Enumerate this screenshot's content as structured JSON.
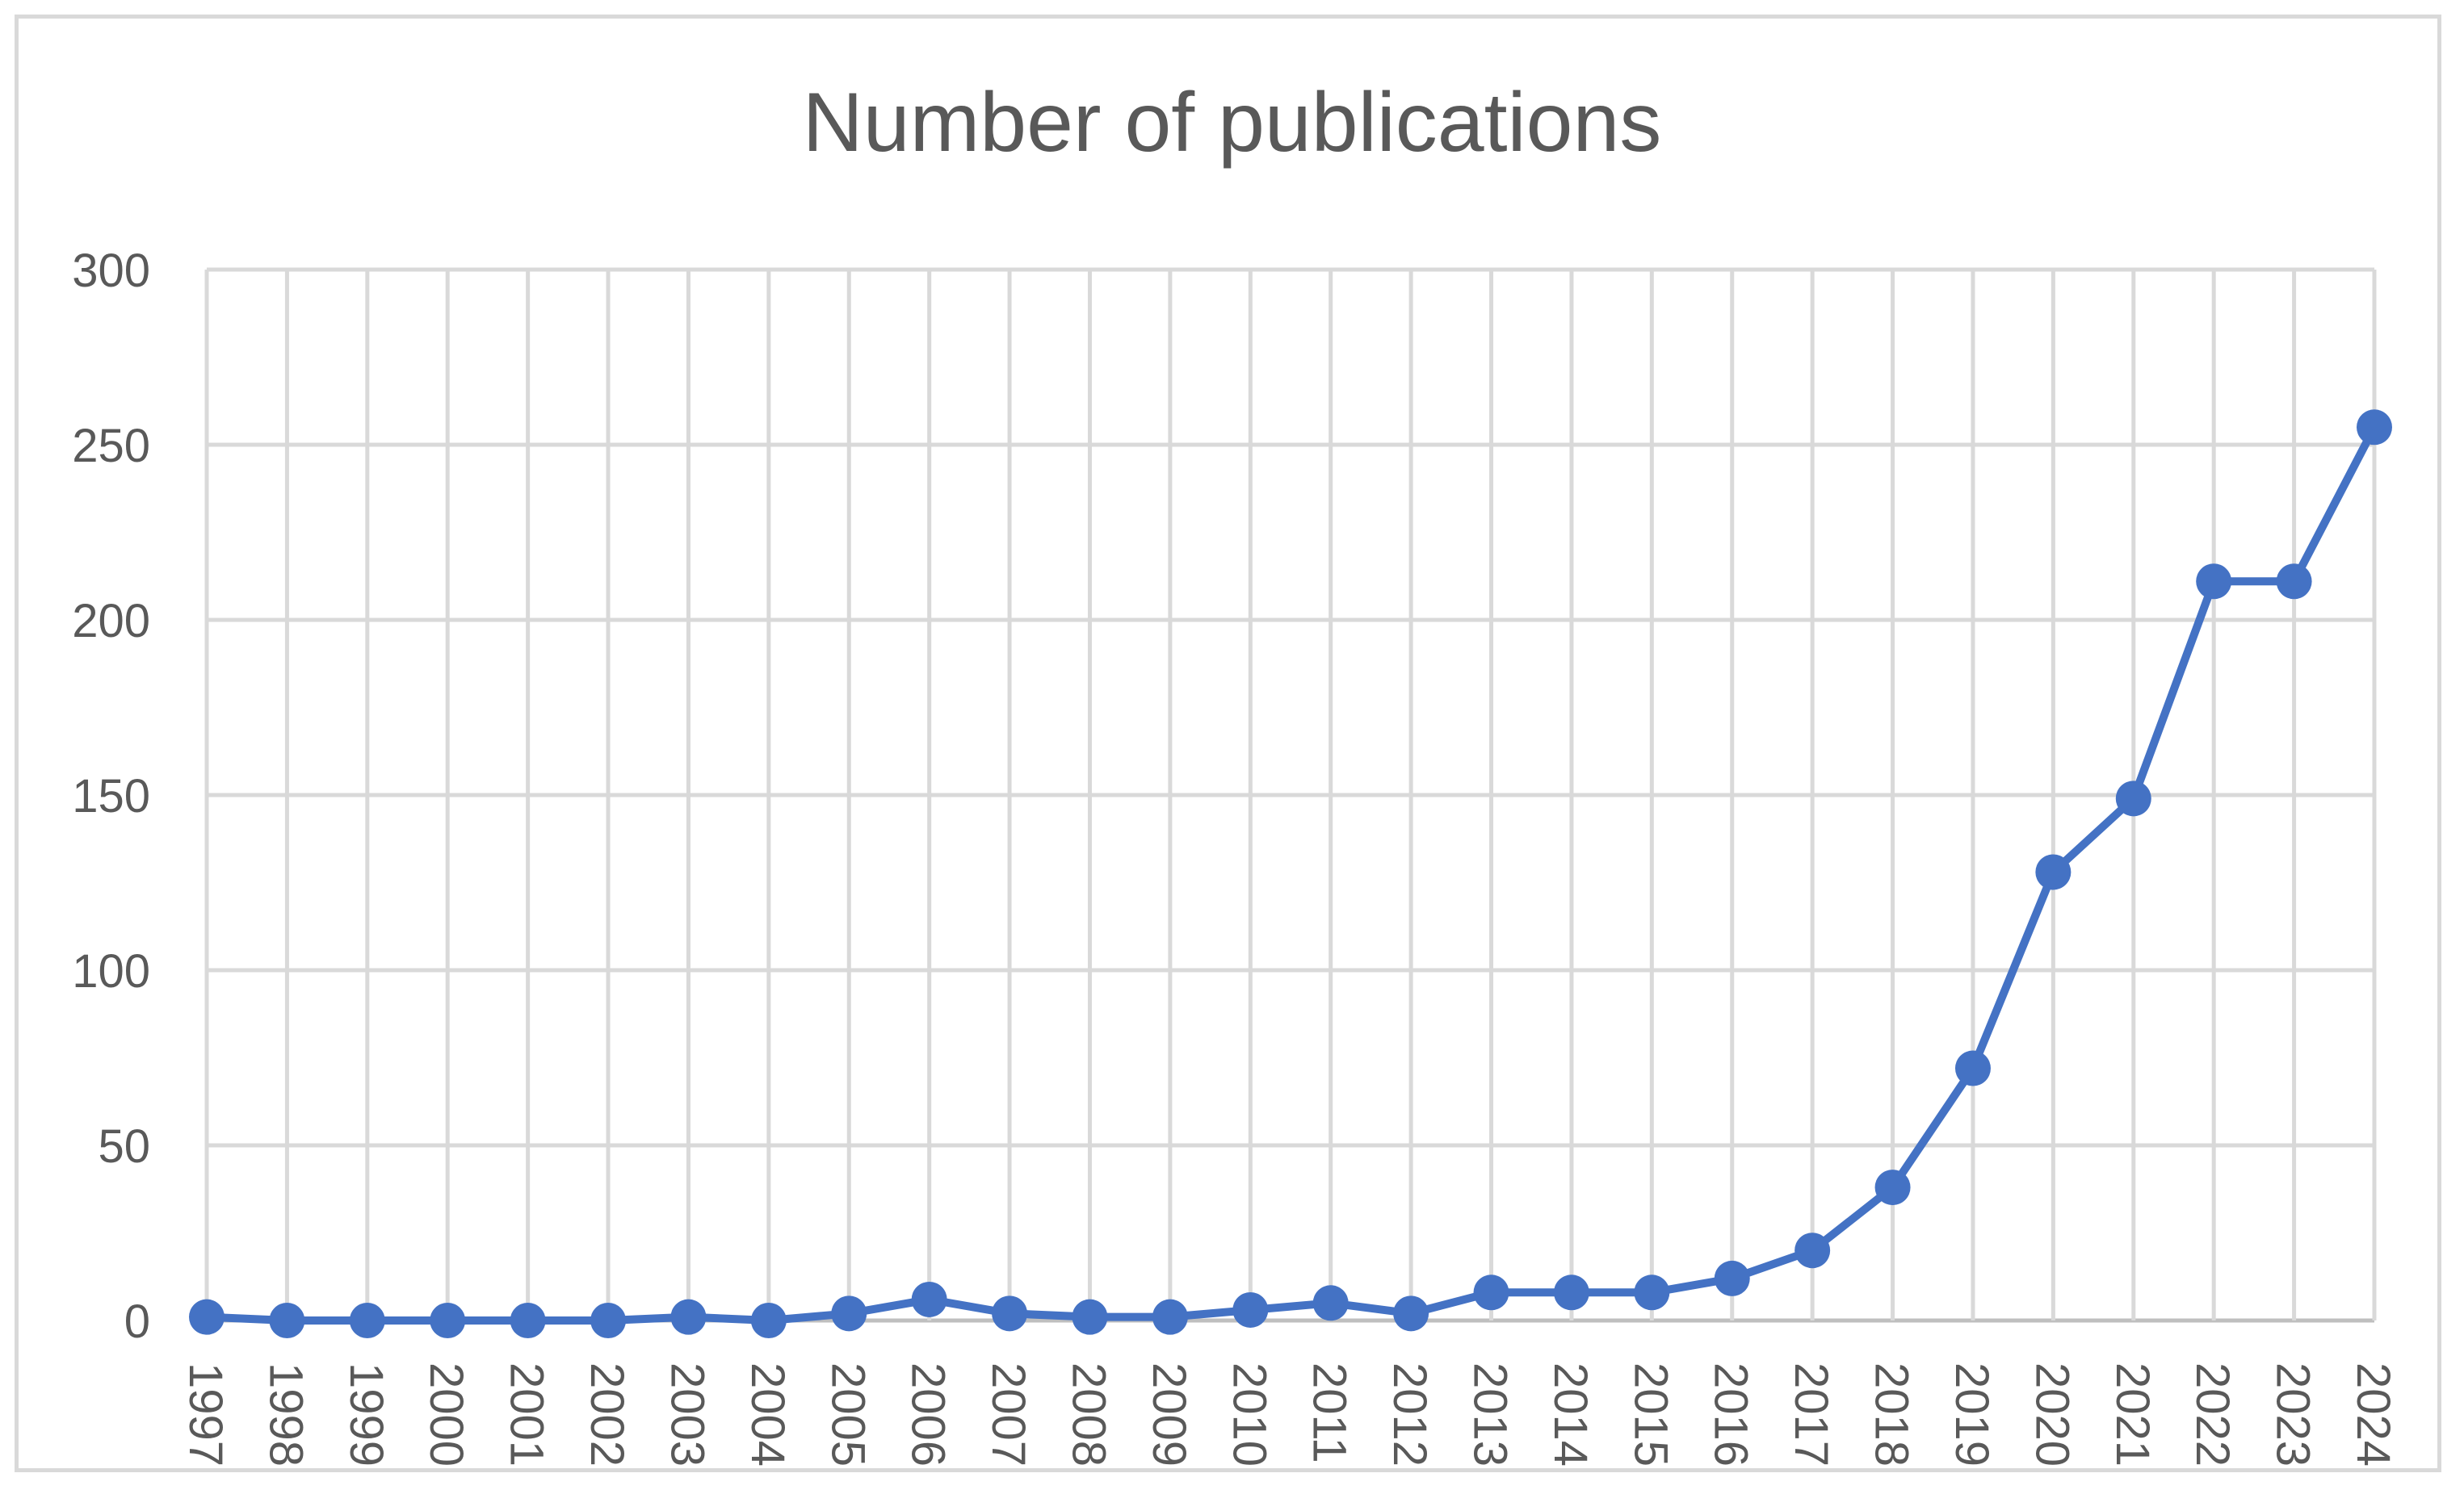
{
  "chart_data": {
    "type": "line",
    "title": "Number of publications",
    "xlabel": "",
    "ylabel": "",
    "ylim": [
      0,
      300
    ],
    "yticks": [
      0,
      50,
      100,
      150,
      200,
      250,
      300
    ],
    "grid": true,
    "legend": "none",
    "categories": [
      "1997",
      "1998",
      "1999",
      "2000",
      "2001",
      "2002",
      "2003",
      "2004",
      "2005",
      "2006",
      "2007",
      "2008",
      "2009",
      "2010",
      "2011",
      "2012",
      "2013",
      "2014",
      "2015",
      "2016",
      "2017",
      "2018",
      "2019",
      "2020",
      "2021",
      "2022",
      "2023",
      "2024"
    ],
    "series": [
      {
        "values": [
          1,
          0,
          0,
          0,
          0,
          0,
          1,
          0,
          2,
          6,
          2,
          1,
          1,
          3,
          5,
          2,
          8,
          8,
          8,
          12,
          20,
          38,
          72,
          128,
          149,
          211,
          211,
          255
        ]
      }
    ],
    "colors": {
      "line": "#4472C4",
      "grid": "#D9D9D9",
      "text": "#595959",
      "frame": "#D9D9D9"
    }
  }
}
